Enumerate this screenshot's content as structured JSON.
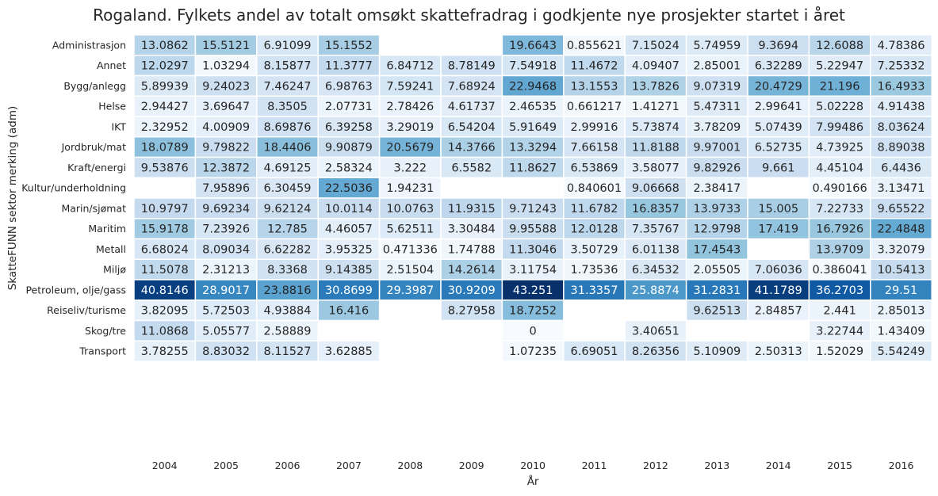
{
  "chart_data": {
    "type": "heatmap",
    "title": "Rogaland. Fylkets andel av totalt omsøkt skattefradrag i godkjente nye prosjekter startet i året",
    "xlabel": "År",
    "ylabel": "SkatteFUNN sektor merking (adm)",
    "colormap": "Blues",
    "vmin": 0,
    "vmax": 43.251,
    "x": [
      "2004",
      "2005",
      "2006",
      "2007",
      "2008",
      "2009",
      "2010",
      "2011",
      "2012",
      "2013",
      "2014",
      "2015",
      "2016"
    ],
    "y": [
      "Administrasjon",
      "Annet",
      "Bygg/anlegg",
      "Helse",
      "IKT",
      "Jordbruk/mat",
      "Kraft/energi",
      "Kultur/underholdning",
      "Marin/sjømat",
      "Maritim",
      "Metall",
      "Miljø",
      "Petroleum, olje/gass",
      "Reiseliv/turisme",
      "Skog/tre",
      "Transport"
    ],
    "cells": [
      [
        "13.0862",
        "15.5121",
        "6.91099",
        "15.1552",
        null,
        null,
        "19.6643",
        "0.855621",
        "7.15024",
        "5.74959",
        "9.3694",
        "12.6088",
        "4.78386"
      ],
      [
        "12.0297",
        "1.03294",
        "8.15877",
        "11.3777",
        "6.84712",
        "8.78149",
        "7.54918",
        "11.4672",
        "4.09407",
        "2.85001",
        "6.32289",
        "5.22947",
        "7.25332"
      ],
      [
        "5.89939",
        "9.24023",
        "7.46247",
        "6.98763",
        "7.59241",
        "7.68924",
        "22.9468",
        "13.1553",
        "13.7826",
        "9.07319",
        "20.4729",
        "21.196",
        "16.4933"
      ],
      [
        "2.94427",
        "3.69647",
        "8.3505",
        "2.07731",
        "2.78426",
        "4.61737",
        "2.46535",
        "0.661217",
        "1.41271",
        "5.47311",
        "2.99641",
        "5.02228",
        "4.91438"
      ],
      [
        "2.32952",
        "4.00909",
        "8.69876",
        "6.39258",
        "3.29019",
        "6.54204",
        "5.91649",
        "2.99916",
        "5.73874",
        "3.78209",
        "5.07439",
        "7.99486",
        "8.03624"
      ],
      [
        "18.0789",
        "9.79822",
        "18.4406",
        "9.90879",
        "20.5679",
        "14.3766",
        "13.3294",
        "7.66158",
        "11.8188",
        "9.97001",
        "6.52735",
        "4.73925",
        "8.89038"
      ],
      [
        "9.53876",
        "12.3872",
        "4.69125",
        "2.58324",
        "3.222",
        "6.5582",
        "11.8627",
        "6.53869",
        "3.58077",
        "9.82926",
        "9.661",
        "4.45104",
        "6.4436"
      ],
      [
        null,
        "7.95896",
        "6.30459",
        "22.5036",
        "1.94231",
        null,
        null,
        "0.840601",
        "9.06668",
        "2.38417",
        null,
        "0.490166",
        "3.13471"
      ],
      [
        "10.9797",
        "9.69234",
        "9.62124",
        "10.0114",
        "10.0763",
        "11.9315",
        "9.71243",
        "11.6782",
        "16.8357",
        "13.9733",
        "15.005",
        "7.22733",
        "9.65522"
      ],
      [
        "15.9178",
        "7.23926",
        "12.785",
        "4.46057",
        "5.62511",
        "3.30484",
        "9.95588",
        "12.0128",
        "7.35767",
        "12.9798",
        "17.419",
        "16.7926",
        "22.4848"
      ],
      [
        "6.68024",
        "8.09034",
        "6.62282",
        "3.95325",
        "0.471336",
        "1.74788",
        "11.3046",
        "3.50729",
        "6.01138",
        "17.4543",
        null,
        "13.9709",
        "3.32079"
      ],
      [
        "11.5078",
        "2.31213",
        "8.3368",
        "9.14385",
        "2.51504",
        "14.2614",
        "3.11754",
        "1.73536",
        "6.34532",
        "2.05505",
        "7.06036",
        "0.386041",
        "10.5413"
      ],
      [
        "40.8146",
        "28.9017",
        "23.8816",
        "30.8699",
        "29.3987",
        "30.9209",
        "43.251",
        "31.3357",
        "25.8874",
        "31.2831",
        "41.1789",
        "36.2703",
        "29.51"
      ],
      [
        "3.82095",
        "5.72503",
        "4.93884",
        "16.416",
        null,
        "8.27958",
        "18.7252",
        null,
        null,
        "9.62513",
        "2.84857",
        "2.441",
        "2.85013"
      ],
      [
        "11.0868",
        "5.05577",
        "2.58889",
        null,
        null,
        null,
        "0",
        null,
        "3.40651",
        null,
        null,
        "3.22744",
        "1.43409"
      ],
      [
        "3.78255",
        "8.83032",
        "8.11527",
        "3.62885",
        null,
        null,
        "1.07235",
        "6.69051",
        "8.26356",
        "5.10909",
        "2.50313",
        "1.52029",
        "5.54249"
      ]
    ]
  }
}
